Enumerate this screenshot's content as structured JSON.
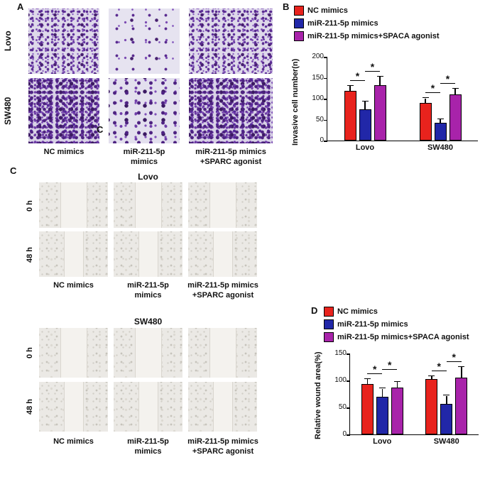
{
  "figure": {
    "panels": {
      "A": {
        "label": "A",
        "row_labels": [
          "Lovo",
          "SW480"
        ],
        "captions": [
          "NC mimics",
          "miR-211-5p\nmimics",
          "miR-211-5p mimics\n+SPARC agonist"
        ],
        "artifact_label": "C"
      },
      "B": {
        "label": "B"
      },
      "C": {
        "label": "C",
        "titles": [
          "Lovo",
          "SW480"
        ],
        "row_labels": [
          "0 h",
          "48 h"
        ],
        "captions": [
          "NC mimics",
          "miR-211-5p\nmimics",
          "miR-211-5p mimics\n+SPARC agonist"
        ]
      },
      "D": {
        "label": "D"
      }
    }
  },
  "chart_data": [
    {
      "id": "invasion",
      "type": "bar",
      "title": "",
      "xlabel": "",
      "ylabel": "Invasive cell number(n)",
      "ylim": [
        0,
        200
      ],
      "yticks": [
        0,
        50,
        100,
        150,
        200
      ],
      "categories": [
        "Lovo",
        "SW480"
      ],
      "legend_position": "top",
      "grid": false,
      "series": [
        {
          "name": "NC mimics",
          "color": "#e8231d",
          "values": [
            118,
            90
          ],
          "errors": [
            13,
            11
          ]
        },
        {
          "name": "miR-211-5p mimics",
          "color": "#2127a8",
          "values": [
            75,
            42
          ],
          "errors": [
            19,
            8
          ]
        },
        {
          "name": "miR-211-5p mimics+SPACA agonist",
          "color": "#a823aa",
          "values": [
            133,
            110
          ],
          "errors": [
            20,
            13
          ]
        }
      ],
      "significance": [
        {
          "group": 0,
          "pair": [
            0,
            1
          ],
          "label": "*"
        },
        {
          "group": 0,
          "pair": [
            1,
            2
          ],
          "label": "*"
        },
        {
          "group": 1,
          "pair": [
            0,
            1
          ],
          "label": "*"
        },
        {
          "group": 1,
          "pair": [
            1,
            2
          ],
          "label": "*"
        }
      ]
    },
    {
      "id": "wound",
      "type": "bar",
      "title": "",
      "xlabel": "",
      "ylabel": "Relative wound area(%)",
      "ylim": [
        0,
        150
      ],
      "yticks": [
        0,
        50,
        100,
        150
      ],
      "categories": [
        "Lovo",
        "SW480"
      ],
      "legend_position": "top",
      "grid": false,
      "series": [
        {
          "name": "NC mimics",
          "color": "#e8231d",
          "values": [
            93,
            103
          ],
          "errors": [
            9,
            5
          ]
        },
        {
          "name": "miR-211-5p mimics",
          "color": "#2127a8",
          "values": [
            70,
            57
          ],
          "errors": [
            15,
            15
          ]
        },
        {
          "name": "miR-211-5p mimics+SPACA agonist",
          "color": "#a823aa",
          "values": [
            87,
            105
          ],
          "errors": [
            10,
            20
          ]
        }
      ],
      "significance": [
        {
          "group": 0,
          "pair": [
            0,
            1
          ],
          "label": "*"
        },
        {
          "group": 0,
          "pair": [
            1,
            2
          ],
          "label": "*",
          "lift": 14
        },
        {
          "group": 1,
          "pair": [
            0,
            1
          ],
          "label": "*"
        },
        {
          "group": 1,
          "pair": [
            1,
            2
          ],
          "label": "*"
        }
      ]
    }
  ]
}
